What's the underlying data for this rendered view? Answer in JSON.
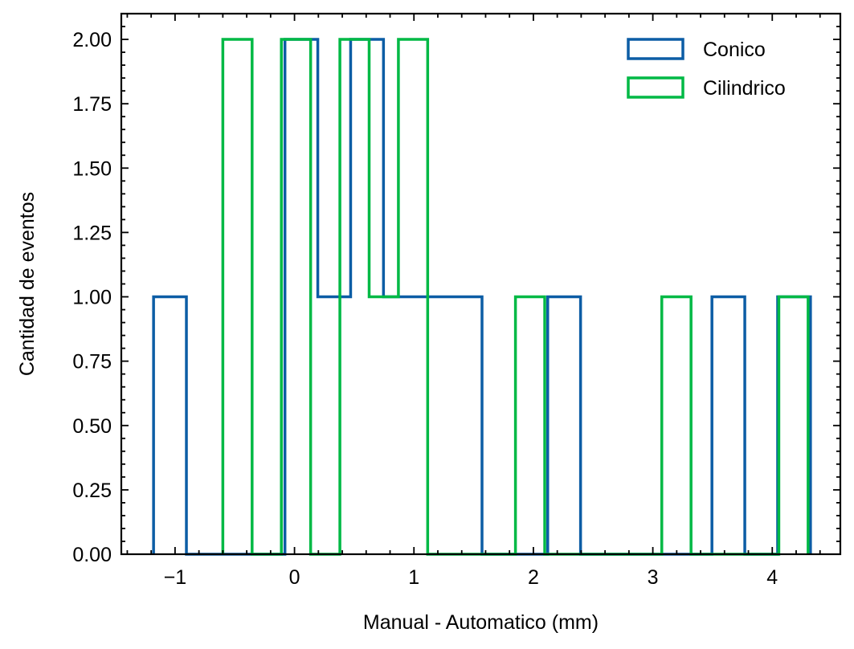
{
  "chart_data": {
    "type": "histogram",
    "title": "",
    "xlabel": "Manual - Automatico (mm)",
    "ylabel": "Cantidad de eventos",
    "xlim": [
      -1.45,
      4.57
    ],
    "ylim": [
      0,
      2.1
    ],
    "xticks": [
      -1,
      0,
      1,
      2,
      3,
      4
    ],
    "xtick_labels": [
      "−1",
      "0",
      "1",
      "2",
      "3",
      "4"
    ],
    "yticks": [
      0,
      0.25,
      0.5,
      0.75,
      1.0,
      1.25,
      1.5,
      1.75,
      2.0
    ],
    "ytick_labels": [
      "0.00",
      "0.25",
      "0.50",
      "0.75",
      "1.00",
      "1.25",
      "1.50",
      "1.75",
      "2.00"
    ],
    "grid": false,
    "legend_position": "top-right",
    "series": [
      {
        "name": "Conico",
        "color": "#0c5da5",
        "bin_edges": [
          -1.18,
          -0.905,
          -0.63,
          -0.355,
          -0.08,
          0.195,
          0.47,
          0.745,
          1.02,
          1.295,
          1.57,
          1.845,
          2.12,
          2.395,
          2.67,
          2.945,
          3.22,
          3.495,
          3.77,
          4.045,
          4.32
        ],
        "counts": [
          1,
          0,
          0,
          0,
          2,
          1,
          2,
          1,
          1,
          1,
          0,
          0,
          1,
          0,
          0,
          0,
          0,
          1,
          0,
          1
        ]
      },
      {
        "name": "Cilindrico",
        "color": "#00b945",
        "bin_edges": [
          -0.6,
          -0.355,
          -0.11,
          0.135,
          0.38,
          0.625,
          0.87,
          1.115,
          1.36,
          1.605,
          1.85,
          2.095,
          2.34,
          2.585,
          2.83,
          3.075,
          3.32,
          3.565,
          3.81,
          4.055,
          4.3
        ],
        "counts": [
          2,
          0,
          2,
          0,
          2,
          1,
          2,
          0,
          0,
          0,
          1,
          0,
          0,
          0,
          0,
          1,
          0,
          0,
          0,
          1
        ]
      }
    ]
  }
}
